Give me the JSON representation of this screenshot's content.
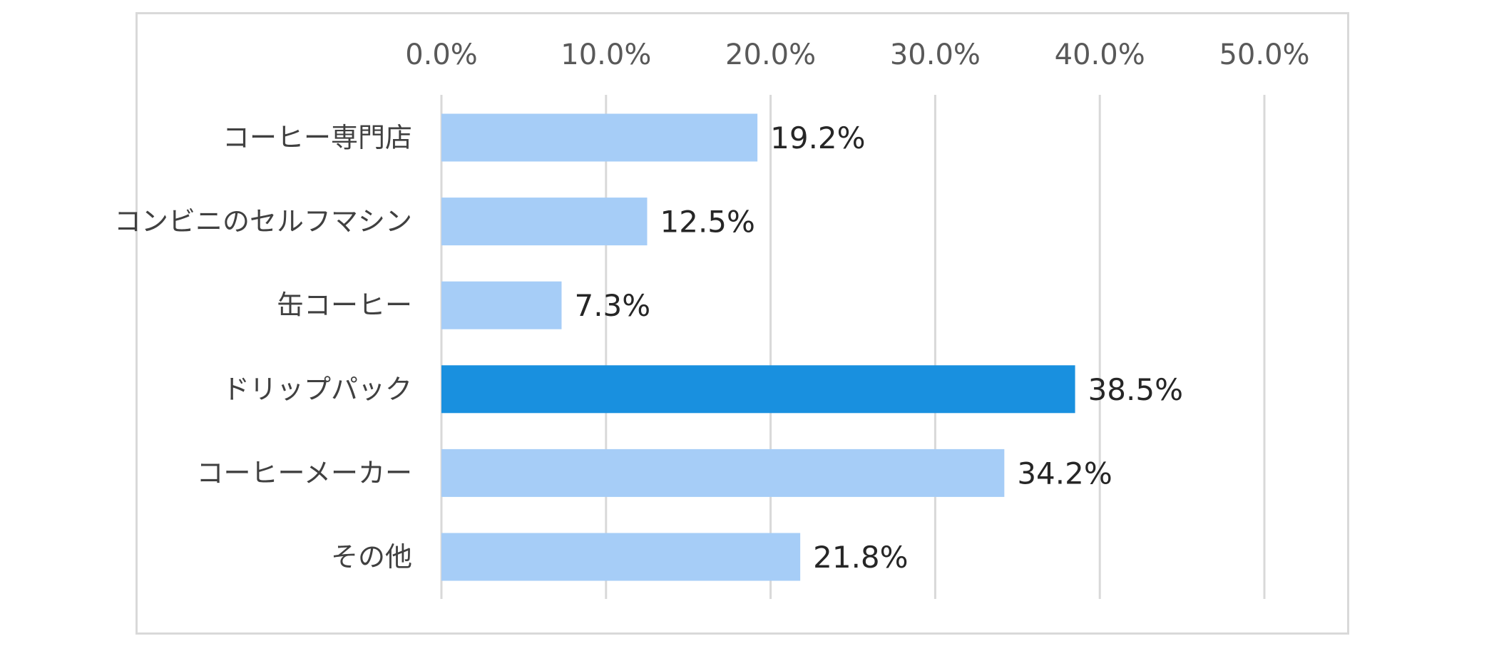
{
  "chart_data": {
    "type": "bar",
    "orientation": "horizontal",
    "categories": [
      "コーヒー専門店",
      "コンビニのセルフマシン",
      "缶コーヒー",
      "ドリップパック",
      "コーヒーメーカー",
      "その他"
    ],
    "values": [
      19.2,
      12.5,
      7.3,
      38.5,
      34.2,
      21.8
    ],
    "data_labels": [
      "19.2%",
      "12.5%",
      "7.3%",
      "38.5%",
      "34.2%",
      "21.8%"
    ],
    "xlim": [
      0,
      50
    ],
    "x_ticks": [
      0,
      10,
      20,
      30,
      40,
      50
    ],
    "x_tick_labels": [
      "0.0%",
      "10.0%",
      "20.0%",
      "30.0%",
      "40.0%",
      "50.0%"
    ],
    "x_axis_position": "top",
    "grid": true,
    "legend": "none",
    "colors": {
      "default_bar": "#a6cdf7",
      "highlight_bar": "#1990df",
      "gridline": "#d9d9d9",
      "frame": "#d9d9d9"
    },
    "highlight_index": 3
  }
}
